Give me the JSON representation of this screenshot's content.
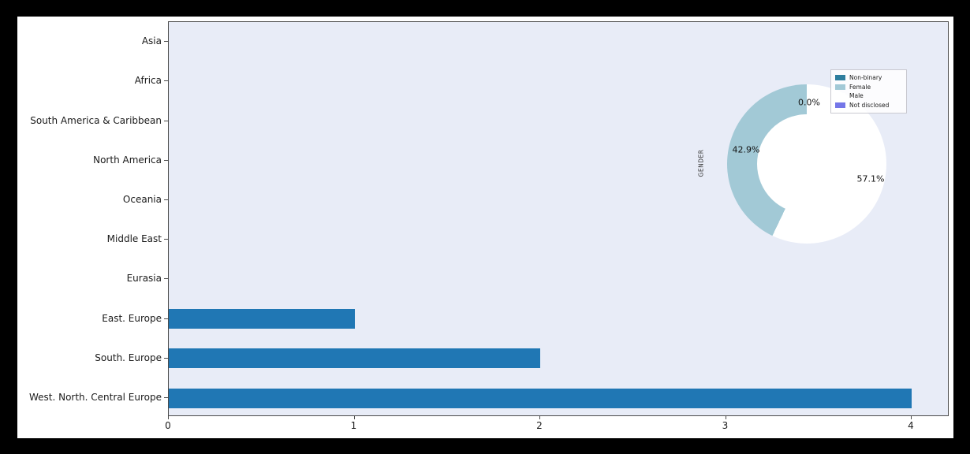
{
  "canvas": {
    "background": "#000000",
    "figure_background": "#ffffff",
    "plot_background": "#e8ecf7",
    "text_color": "#1a1a1a",
    "spine_color": "#4a4a4a"
  },
  "chart_data": [
    {
      "type": "bar",
      "orientation": "horizontal",
      "title": "",
      "xlabel": "",
      "ylabel": "",
      "categories": [
        "Asia",
        "Africa",
        "South America & Caribbean",
        "North America",
        "Oceania",
        "Middle East",
        "Eurasia",
        "East. Europe",
        "South. Europe",
        "West. North. Central Europe"
      ],
      "values": [
        0,
        0,
        0,
        0,
        0,
        0,
        0,
        1,
        2,
        4
      ],
      "x_ticks": [
        "0",
        "1",
        "2",
        "3",
        "4"
      ],
      "x_tick_values": [
        0,
        1,
        2,
        3,
        4
      ],
      "xlim": [
        0,
        4.2
      ],
      "bar_color": "#2077b4",
      "grid": false,
      "legend_position": "none"
    },
    {
      "type": "pie",
      "subtype": "donut",
      "title": "GENDER",
      "start_angle": 90,
      "direction": "counterclockwise",
      "legend_position": "upper right",
      "slices": [
        {
          "label": "Non-binary",
          "value": 0.0,
          "pct_label": "0.0%",
          "color": "#2e7e9e",
          "label_shown": true
        },
        {
          "label": "Female",
          "value": 42.9,
          "pct_label": "42.9%",
          "color": "#a2c9d6",
          "label_shown": true
        },
        {
          "label": "Male",
          "value": 57.1,
          "pct_label": "57.1%",
          "color": "#ffffff",
          "label_shown": true
        },
        {
          "label": "Not disclosed",
          "value": 0.0,
          "pct_label": "0.0%",
          "color": "#7577e8",
          "label_shown": false
        }
      ]
    }
  ]
}
